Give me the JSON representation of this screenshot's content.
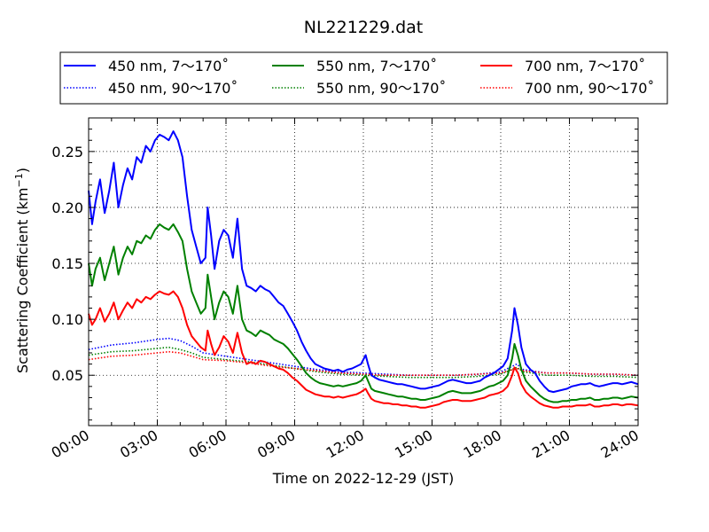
{
  "chart_data": {
    "type": "line",
    "title": "NL221229.dat",
    "xlabel": "Time on 2022-12-29 (JST)",
    "ylabel": "Scattering Coefficient (km",
    "ylabel_exponent": "−1",
    "ylabel_close": ")",
    "xlim": [
      0,
      24
    ],
    "ylim": [
      0.005,
      0.28
    ],
    "x_ticks": [
      {
        "value": 0,
        "label": "00:00"
      },
      {
        "value": 3,
        "label": "03:00"
      },
      {
        "value": 6,
        "label": "06:00"
      },
      {
        "value": 9,
        "label": "09:00"
      },
      {
        "value": 12,
        "label": "12:00"
      },
      {
        "value": 15,
        "label": "15:00"
      },
      {
        "value": 18,
        "label": "18:00"
      },
      {
        "value": 21,
        "label": "21:00"
      },
      {
        "value": 24,
        "label": "24:00"
      }
    ],
    "y_ticks": [
      {
        "value": 0.05,
        "label": "0.05"
      },
      {
        "value": 0.1,
        "label": "0.10"
      },
      {
        "value": 0.15,
        "label": "0.15"
      },
      {
        "value": 0.2,
        "label": "0.20"
      },
      {
        "value": 0.25,
        "label": "0.25"
      }
    ],
    "grid": true,
    "legend_position": "top",
    "series": [
      {
        "name": "450 nm, 7～170˚",
        "color": "#0000ff",
        "style": "solid",
        "x": [
          0,
          0.15,
          0.3,
          0.5,
          0.7,
          0.9,
          1.1,
          1.3,
          1.5,
          1.7,
          1.9,
          2.1,
          2.3,
          2.5,
          2.7,
          2.9,
          3.1,
          3.3,
          3.5,
          3.7,
          3.9,
          4.1,
          4.3,
          4.5,
          4.7,
          4.9,
          5.1,
          5.2,
          5.35,
          5.5,
          5.7,
          5.9,
          6.1,
          6.3,
          6.5,
          6.7,
          6.9,
          7.1,
          7.3,
          7.5,
          7.7,
          7.9,
          8.1,
          8.3,
          8.5,
          8.7,
          8.9,
          9.1,
          9.3,
          9.5,
          9.7,
          9.9,
          10.1,
          10.3,
          10.5,
          10.7,
          10.9,
          11.1,
          11.3,
          11.5,
          11.7,
          11.9,
          12.1,
          12.2,
          12.35,
          12.5,
          12.7,
          12.9,
          13.1,
          13.3,
          13.5,
          13.7,
          13.9,
          14.1,
          14.3,
          14.5,
          14.7,
          14.9,
          15.1,
          15.3,
          15.5,
          15.7,
          15.9,
          16.1,
          16.3,
          16.5,
          16.7,
          16.9,
          17.1,
          17.3,
          17.5,
          17.7,
          17.9,
          18.1,
          18.3,
          18.5,
          18.6,
          18.75,
          18.9,
          19.1,
          19.3,
          19.5,
          19.7,
          19.9,
          20.1,
          20.3,
          20.5,
          20.7,
          20.9,
          21.1,
          21.3,
          21.5,
          21.7,
          21.9,
          22.1,
          22.3,
          22.5,
          22.7,
          22.9,
          23.1,
          23.3,
          23.5,
          23.7,
          24
        ],
        "values": [
          0.215,
          0.185,
          0.205,
          0.225,
          0.195,
          0.215,
          0.24,
          0.2,
          0.22,
          0.235,
          0.225,
          0.245,
          0.24,
          0.255,
          0.25,
          0.26,
          0.265,
          0.263,
          0.26,
          0.268,
          0.26,
          0.245,
          0.21,
          0.18,
          0.165,
          0.15,
          0.155,
          0.2,
          0.175,
          0.145,
          0.17,
          0.18,
          0.175,
          0.155,
          0.19,
          0.145,
          0.13,
          0.128,
          0.125,
          0.13,
          0.127,
          0.125,
          0.12,
          0.115,
          0.112,
          0.105,
          0.098,
          0.09,
          0.08,
          0.072,
          0.065,
          0.06,
          0.058,
          0.056,
          0.055,
          0.054,
          0.055,
          0.053,
          0.055,
          0.056,
          0.058,
          0.06,
          0.068,
          0.06,
          0.05,
          0.048,
          0.046,
          0.045,
          0.044,
          0.043,
          0.042,
          0.042,
          0.041,
          0.04,
          0.039,
          0.038,
          0.038,
          0.039,
          0.04,
          0.041,
          0.043,
          0.045,
          0.046,
          0.045,
          0.044,
          0.043,
          0.043,
          0.044,
          0.045,
          0.048,
          0.05,
          0.052,
          0.055,
          0.058,
          0.065,
          0.09,
          0.11,
          0.095,
          0.075,
          0.06,
          0.055,
          0.052,
          0.045,
          0.04,
          0.036,
          0.035,
          0.036,
          0.037,
          0.038,
          0.04,
          0.041,
          0.042,
          0.042,
          0.043,
          0.041,
          0.04,
          0.041,
          0.042,
          0.043,
          0.043,
          0.042,
          0.043,
          0.044,
          0.042
        ]
      },
      {
        "name": "450 nm, 90～170˚",
        "color": "#0000ff",
        "style": "dotted",
        "x": [
          0,
          1,
          2,
          3,
          3.5,
          4,
          4.5,
          5,
          6,
          7,
          8,
          9,
          10,
          11,
          12,
          13,
          14,
          15,
          16,
          17,
          18,
          18.7,
          19,
          20,
          21,
          22,
          23,
          24
        ],
        "values": [
          0.073,
          0.077,
          0.079,
          0.082,
          0.083,
          0.081,
          0.076,
          0.07,
          0.067,
          0.064,
          0.061,
          0.058,
          0.055,
          0.053,
          0.052,
          0.051,
          0.05,
          0.05,
          0.05,
          0.051,
          0.053,
          0.06,
          0.055,
          0.052,
          0.052,
          0.051,
          0.051,
          0.05
        ]
      },
      {
        "name": "550 nm, 7～170˚",
        "color": "#008000",
        "style": "solid",
        "x": [
          0,
          0.15,
          0.3,
          0.5,
          0.7,
          0.9,
          1.1,
          1.3,
          1.5,
          1.7,
          1.9,
          2.1,
          2.3,
          2.5,
          2.7,
          2.9,
          3.1,
          3.3,
          3.5,
          3.7,
          3.9,
          4.1,
          4.3,
          4.5,
          4.7,
          4.9,
          5.1,
          5.2,
          5.35,
          5.5,
          5.7,
          5.9,
          6.1,
          6.3,
          6.5,
          6.7,
          6.9,
          7.1,
          7.3,
          7.5,
          7.7,
          7.9,
          8.1,
          8.3,
          8.5,
          8.7,
          8.9,
          9.1,
          9.3,
          9.5,
          9.7,
          9.9,
          10.1,
          10.3,
          10.5,
          10.7,
          10.9,
          11.1,
          11.3,
          11.5,
          11.7,
          11.9,
          12.1,
          12.2,
          12.35,
          12.5,
          12.7,
          12.9,
          13.1,
          13.3,
          13.5,
          13.7,
          13.9,
          14.1,
          14.3,
          14.5,
          14.7,
          14.9,
          15.1,
          15.3,
          15.5,
          15.7,
          15.9,
          16.1,
          16.3,
          16.5,
          16.7,
          16.9,
          17.1,
          17.3,
          17.5,
          17.7,
          17.9,
          18.1,
          18.3,
          18.5,
          18.6,
          18.75,
          18.9,
          19.1,
          19.3,
          19.5,
          19.7,
          19.9,
          20.1,
          20.3,
          20.5,
          20.7,
          20.9,
          21.1,
          21.3,
          21.5,
          21.7,
          21.9,
          22.1,
          22.3,
          22.5,
          22.7,
          22.9,
          23.1,
          23.3,
          23.5,
          23.7,
          24
        ],
        "values": [
          0.15,
          0.13,
          0.145,
          0.155,
          0.135,
          0.15,
          0.165,
          0.14,
          0.155,
          0.165,
          0.158,
          0.17,
          0.168,
          0.175,
          0.172,
          0.18,
          0.185,
          0.182,
          0.18,
          0.185,
          0.178,
          0.17,
          0.145,
          0.125,
          0.115,
          0.105,
          0.11,
          0.14,
          0.12,
          0.1,
          0.115,
          0.125,
          0.12,
          0.105,
          0.13,
          0.1,
          0.09,
          0.088,
          0.085,
          0.09,
          0.088,
          0.086,
          0.082,
          0.08,
          0.078,
          0.074,
          0.069,
          0.064,
          0.058,
          0.052,
          0.048,
          0.045,
          0.043,
          0.042,
          0.041,
          0.04,
          0.041,
          0.04,
          0.041,
          0.042,
          0.043,
          0.045,
          0.05,
          0.045,
          0.038,
          0.036,
          0.035,
          0.034,
          0.033,
          0.032,
          0.031,
          0.031,
          0.03,
          0.029,
          0.029,
          0.028,
          0.028,
          0.029,
          0.03,
          0.031,
          0.033,
          0.035,
          0.036,
          0.035,
          0.034,
          0.034,
          0.034,
          0.035,
          0.036,
          0.038,
          0.04,
          0.041,
          0.043,
          0.045,
          0.05,
          0.065,
          0.078,
          0.068,
          0.055,
          0.045,
          0.04,
          0.036,
          0.032,
          0.029,
          0.027,
          0.026,
          0.026,
          0.027,
          0.027,
          0.028,
          0.028,
          0.029,
          0.029,
          0.03,
          0.028,
          0.028,
          0.029,
          0.029,
          0.03,
          0.03,
          0.029,
          0.03,
          0.031,
          0.03
        ]
      },
      {
        "name": "550 nm, 90～170˚",
        "color": "#008000",
        "style": "dotted",
        "x": [
          0,
          1,
          2,
          3,
          3.5,
          4,
          4.5,
          5,
          6,
          7,
          8,
          9,
          10,
          11,
          12,
          13,
          14,
          15,
          16,
          17,
          18,
          18.7,
          19,
          20,
          21,
          22,
          23,
          24
        ],
        "values": [
          0.068,
          0.071,
          0.072,
          0.074,
          0.075,
          0.073,
          0.07,
          0.066,
          0.064,
          0.062,
          0.059,
          0.056,
          0.053,
          0.051,
          0.05,
          0.049,
          0.048,
          0.048,
          0.048,
          0.049,
          0.051,
          0.057,
          0.053,
          0.05,
          0.05,
          0.049,
          0.049,
          0.048
        ]
      },
      {
        "name": "700 nm, 7～170˚",
        "color": "#ff0000",
        "style": "solid",
        "x": [
          0,
          0.15,
          0.3,
          0.5,
          0.7,
          0.9,
          1.1,
          1.3,
          1.5,
          1.7,
          1.9,
          2.1,
          2.3,
          2.5,
          2.7,
          2.9,
          3.1,
          3.3,
          3.5,
          3.7,
          3.9,
          4.1,
          4.3,
          4.5,
          4.7,
          4.9,
          5.1,
          5.2,
          5.35,
          5.5,
          5.7,
          5.9,
          6.1,
          6.3,
          6.5,
          6.7,
          6.9,
          7.1,
          7.3,
          7.5,
          7.7,
          7.9,
          8.1,
          8.3,
          8.5,
          8.7,
          8.9,
          9.1,
          9.3,
          9.5,
          9.7,
          9.9,
          10.1,
          10.3,
          10.5,
          10.7,
          10.9,
          11.1,
          11.3,
          11.5,
          11.7,
          11.9,
          12.1,
          12.2,
          12.35,
          12.5,
          12.7,
          12.9,
          13.1,
          13.3,
          13.5,
          13.7,
          13.9,
          14.1,
          14.3,
          14.5,
          14.7,
          14.9,
          15.1,
          15.3,
          15.5,
          15.7,
          15.9,
          16.1,
          16.3,
          16.5,
          16.7,
          16.9,
          17.1,
          17.3,
          17.5,
          17.7,
          17.9,
          18.1,
          18.3,
          18.5,
          18.6,
          18.75,
          18.9,
          19.1,
          19.3,
          19.5,
          19.7,
          19.9,
          20.1,
          20.3,
          20.5,
          20.7,
          20.9,
          21.1,
          21.3,
          21.5,
          21.7,
          21.9,
          22.1,
          22.3,
          22.5,
          22.7,
          22.9,
          23.1,
          23.3,
          23.5,
          23.7,
          24
        ],
        "values": [
          0.105,
          0.095,
          0.1,
          0.11,
          0.098,
          0.105,
          0.115,
          0.1,
          0.108,
          0.115,
          0.11,
          0.118,
          0.115,
          0.12,
          0.118,
          0.122,
          0.125,
          0.123,
          0.122,
          0.125,
          0.12,
          0.11,
          0.095,
          0.085,
          0.08,
          0.075,
          0.072,
          0.09,
          0.078,
          0.068,
          0.075,
          0.085,
          0.08,
          0.07,
          0.088,
          0.07,
          0.06,
          0.062,
          0.06,
          0.063,
          0.062,
          0.06,
          0.058,
          0.056,
          0.055,
          0.052,
          0.048,
          0.045,
          0.041,
          0.037,
          0.035,
          0.033,
          0.032,
          0.031,
          0.031,
          0.03,
          0.031,
          0.03,
          0.031,
          0.032,
          0.033,
          0.035,
          0.038,
          0.034,
          0.029,
          0.027,
          0.026,
          0.025,
          0.025,
          0.024,
          0.024,
          0.023,
          0.023,
          0.022,
          0.022,
          0.021,
          0.021,
          0.022,
          0.023,
          0.024,
          0.026,
          0.027,
          0.028,
          0.028,
          0.027,
          0.027,
          0.027,
          0.028,
          0.029,
          0.03,
          0.032,
          0.033,
          0.034,
          0.036,
          0.04,
          0.05,
          0.057,
          0.052,
          0.042,
          0.035,
          0.031,
          0.028,
          0.025,
          0.023,
          0.022,
          0.021,
          0.021,
          0.022,
          0.022,
          0.022,
          0.023,
          0.023,
          0.023,
          0.024,
          0.022,
          0.022,
          0.023,
          0.023,
          0.024,
          0.024,
          0.023,
          0.024,
          0.024,
          0.023
        ]
      },
      {
        "name": "700 nm, 90～170˚",
        "color": "#ff0000",
        "style": "dotted",
        "x": [
          0,
          1,
          2,
          3,
          3.5,
          4,
          4.5,
          5,
          6,
          7,
          8,
          9,
          10,
          11,
          12,
          13,
          14,
          15,
          16,
          17,
          18,
          18.7,
          19,
          20,
          21,
          22,
          23,
          24
        ],
        "values": [
          0.064,
          0.067,
          0.068,
          0.07,
          0.071,
          0.07,
          0.067,
          0.064,
          0.063,
          0.061,
          0.058,
          0.056,
          0.054,
          0.052,
          0.051,
          0.05,
          0.05,
          0.05,
          0.05,
          0.051,
          0.052,
          0.056,
          0.054,
          0.052,
          0.052,
          0.051,
          0.051,
          0.05
        ]
      }
    ]
  }
}
